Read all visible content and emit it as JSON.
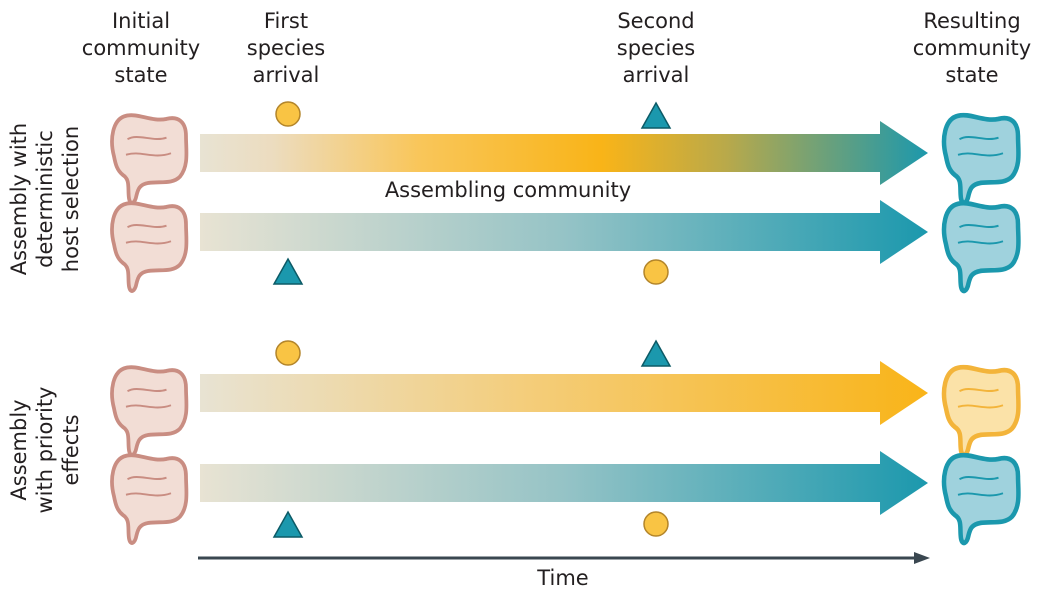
{
  "headers": {
    "initial": "Initial\ncommunity\nstate",
    "first": "First\nspecies\narrival",
    "second": "Second\nspecies\narrival",
    "resulting": "Resulting\ncommunity\nstate"
  },
  "groups": [
    {
      "label": "Assembly with\ndeterministic\nhost selection"
    },
    {
      "label": "Assembly\nwith priority\neffects"
    }
  ],
  "rows": [
    {
      "first": "circle",
      "second": "triangle",
      "outcome": "teal"
    },
    {
      "first": "triangle",
      "second": "circle",
      "outcome": "teal"
    },
    {
      "first": "circle",
      "second": "triangle",
      "outcome": "gold"
    },
    {
      "first": "triangle",
      "second": "circle",
      "outcome": "teal"
    }
  ],
  "assembling_label": "Assembling community",
  "time_label": "Time",
  "colors": {
    "initial_gut": "#e8b9aa",
    "teal": "#1b98ad",
    "gold": "#f9b418",
    "start": "#e8e3d3"
  }
}
